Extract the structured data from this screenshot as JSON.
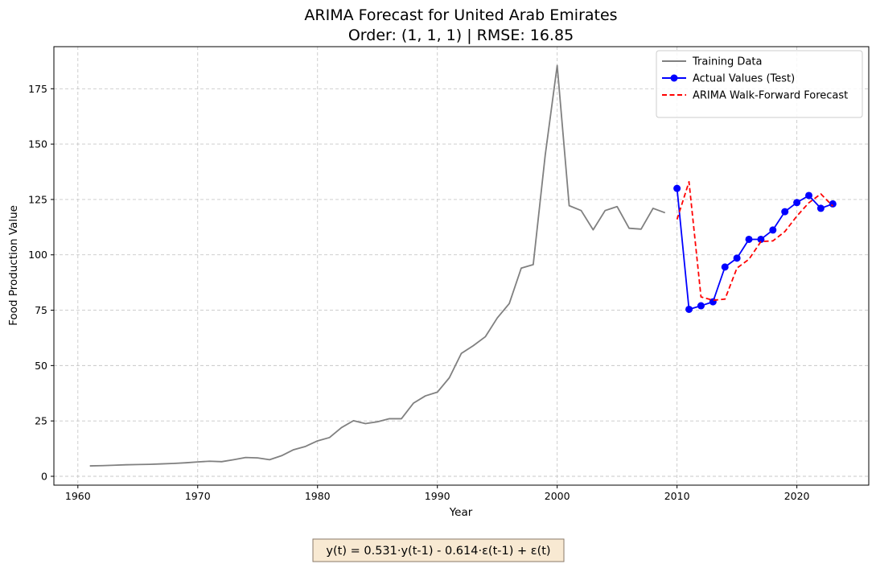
{
  "chart_data": {
    "type": "line",
    "title": "ARIMA Forecast for United Arab Emirates",
    "subtitle": "Order: (1, 1, 1) | RMSE: 16.85",
    "xlabel": "Year",
    "ylabel": "Food Production Value",
    "xlim": [
      1958,
      2026
    ],
    "ylim": [
      -4,
      194
    ],
    "x_ticks": [
      1960,
      1970,
      1980,
      1990,
      2000,
      2010,
      2020
    ],
    "y_ticks": [
      0,
      25,
      50,
      75,
      100,
      125,
      150,
      175
    ],
    "grid": true,
    "legend_position": "top-right",
    "series": [
      {
        "name": "Training Data",
        "color": "#808080",
        "style": "solid",
        "x": [
          1961,
          1962,
          1963,
          1964,
          1965,
          1966,
          1967,
          1968,
          1969,
          1970,
          1971,
          1972,
          1973,
          1974,
          1975,
          1976,
          1977,
          1978,
          1979,
          1980,
          1981,
          1982,
          1983,
          1984,
          1985,
          1986,
          1987,
          1988,
          1989,
          1990,
          1991,
          1992,
          1993,
          1994,
          1995,
          1996,
          1997,
          1998,
          1999,
          2000,
          2001,
          2002,
          2003,
          2004,
          2005,
          2006,
          2007,
          2008,
          2009
        ],
        "values": [
          4.7,
          4.8,
          5.0,
          5.2,
          5.3,
          5.4,
          5.6,
          5.8,
          6.1,
          6.5,
          6.8,
          6.6,
          7.5,
          8.5,
          8.3,
          7.5,
          9.3,
          12.0,
          13.5,
          16.0,
          17.5,
          22.0,
          25.1,
          23.8,
          24.6,
          26.0,
          26.0,
          33.0,
          36.3,
          38.0,
          44.5,
          55.5,
          59.0,
          63.0,
          71.5,
          78.0,
          94.0,
          95.6,
          145.0,
          185.5,
          122.2,
          120.0,
          111.3,
          120.0,
          121.8,
          112.0,
          111.6,
          121.0,
          119.0
        ]
      },
      {
        "name": "Actual Values (Test)",
        "color": "#0000ff",
        "style": "solid-markers",
        "x": [
          2010,
          2011,
          2012,
          2013,
          2014,
          2015,
          2016,
          2017,
          2018,
          2019,
          2020,
          2021,
          2022,
          2023
        ],
        "values": [
          130.0,
          75.4,
          77.0,
          78.8,
          94.5,
          98.5,
          107.0,
          107.0,
          111.2,
          119.5,
          123.6,
          126.8,
          121.0,
          123.0
        ]
      },
      {
        "name": "ARIMA Walk-Forward Forecast",
        "color": "#ff0000",
        "style": "dashed",
        "x": [
          2010,
          2011,
          2012,
          2013,
          2014,
          2015,
          2016,
          2017,
          2018,
          2019,
          2020,
          2021,
          2022,
          2023
        ],
        "values": [
          116.0,
          133.0,
          81.0,
          79.5,
          80.0,
          94.0,
          98.0,
          106.0,
          106.3,
          110.5,
          117.5,
          123.5,
          127.5,
          122.0
        ]
      }
    ],
    "annotation": "y(t) =  0.531·y(t-1) - 0.614·ε(t-1) + ε(t)"
  }
}
